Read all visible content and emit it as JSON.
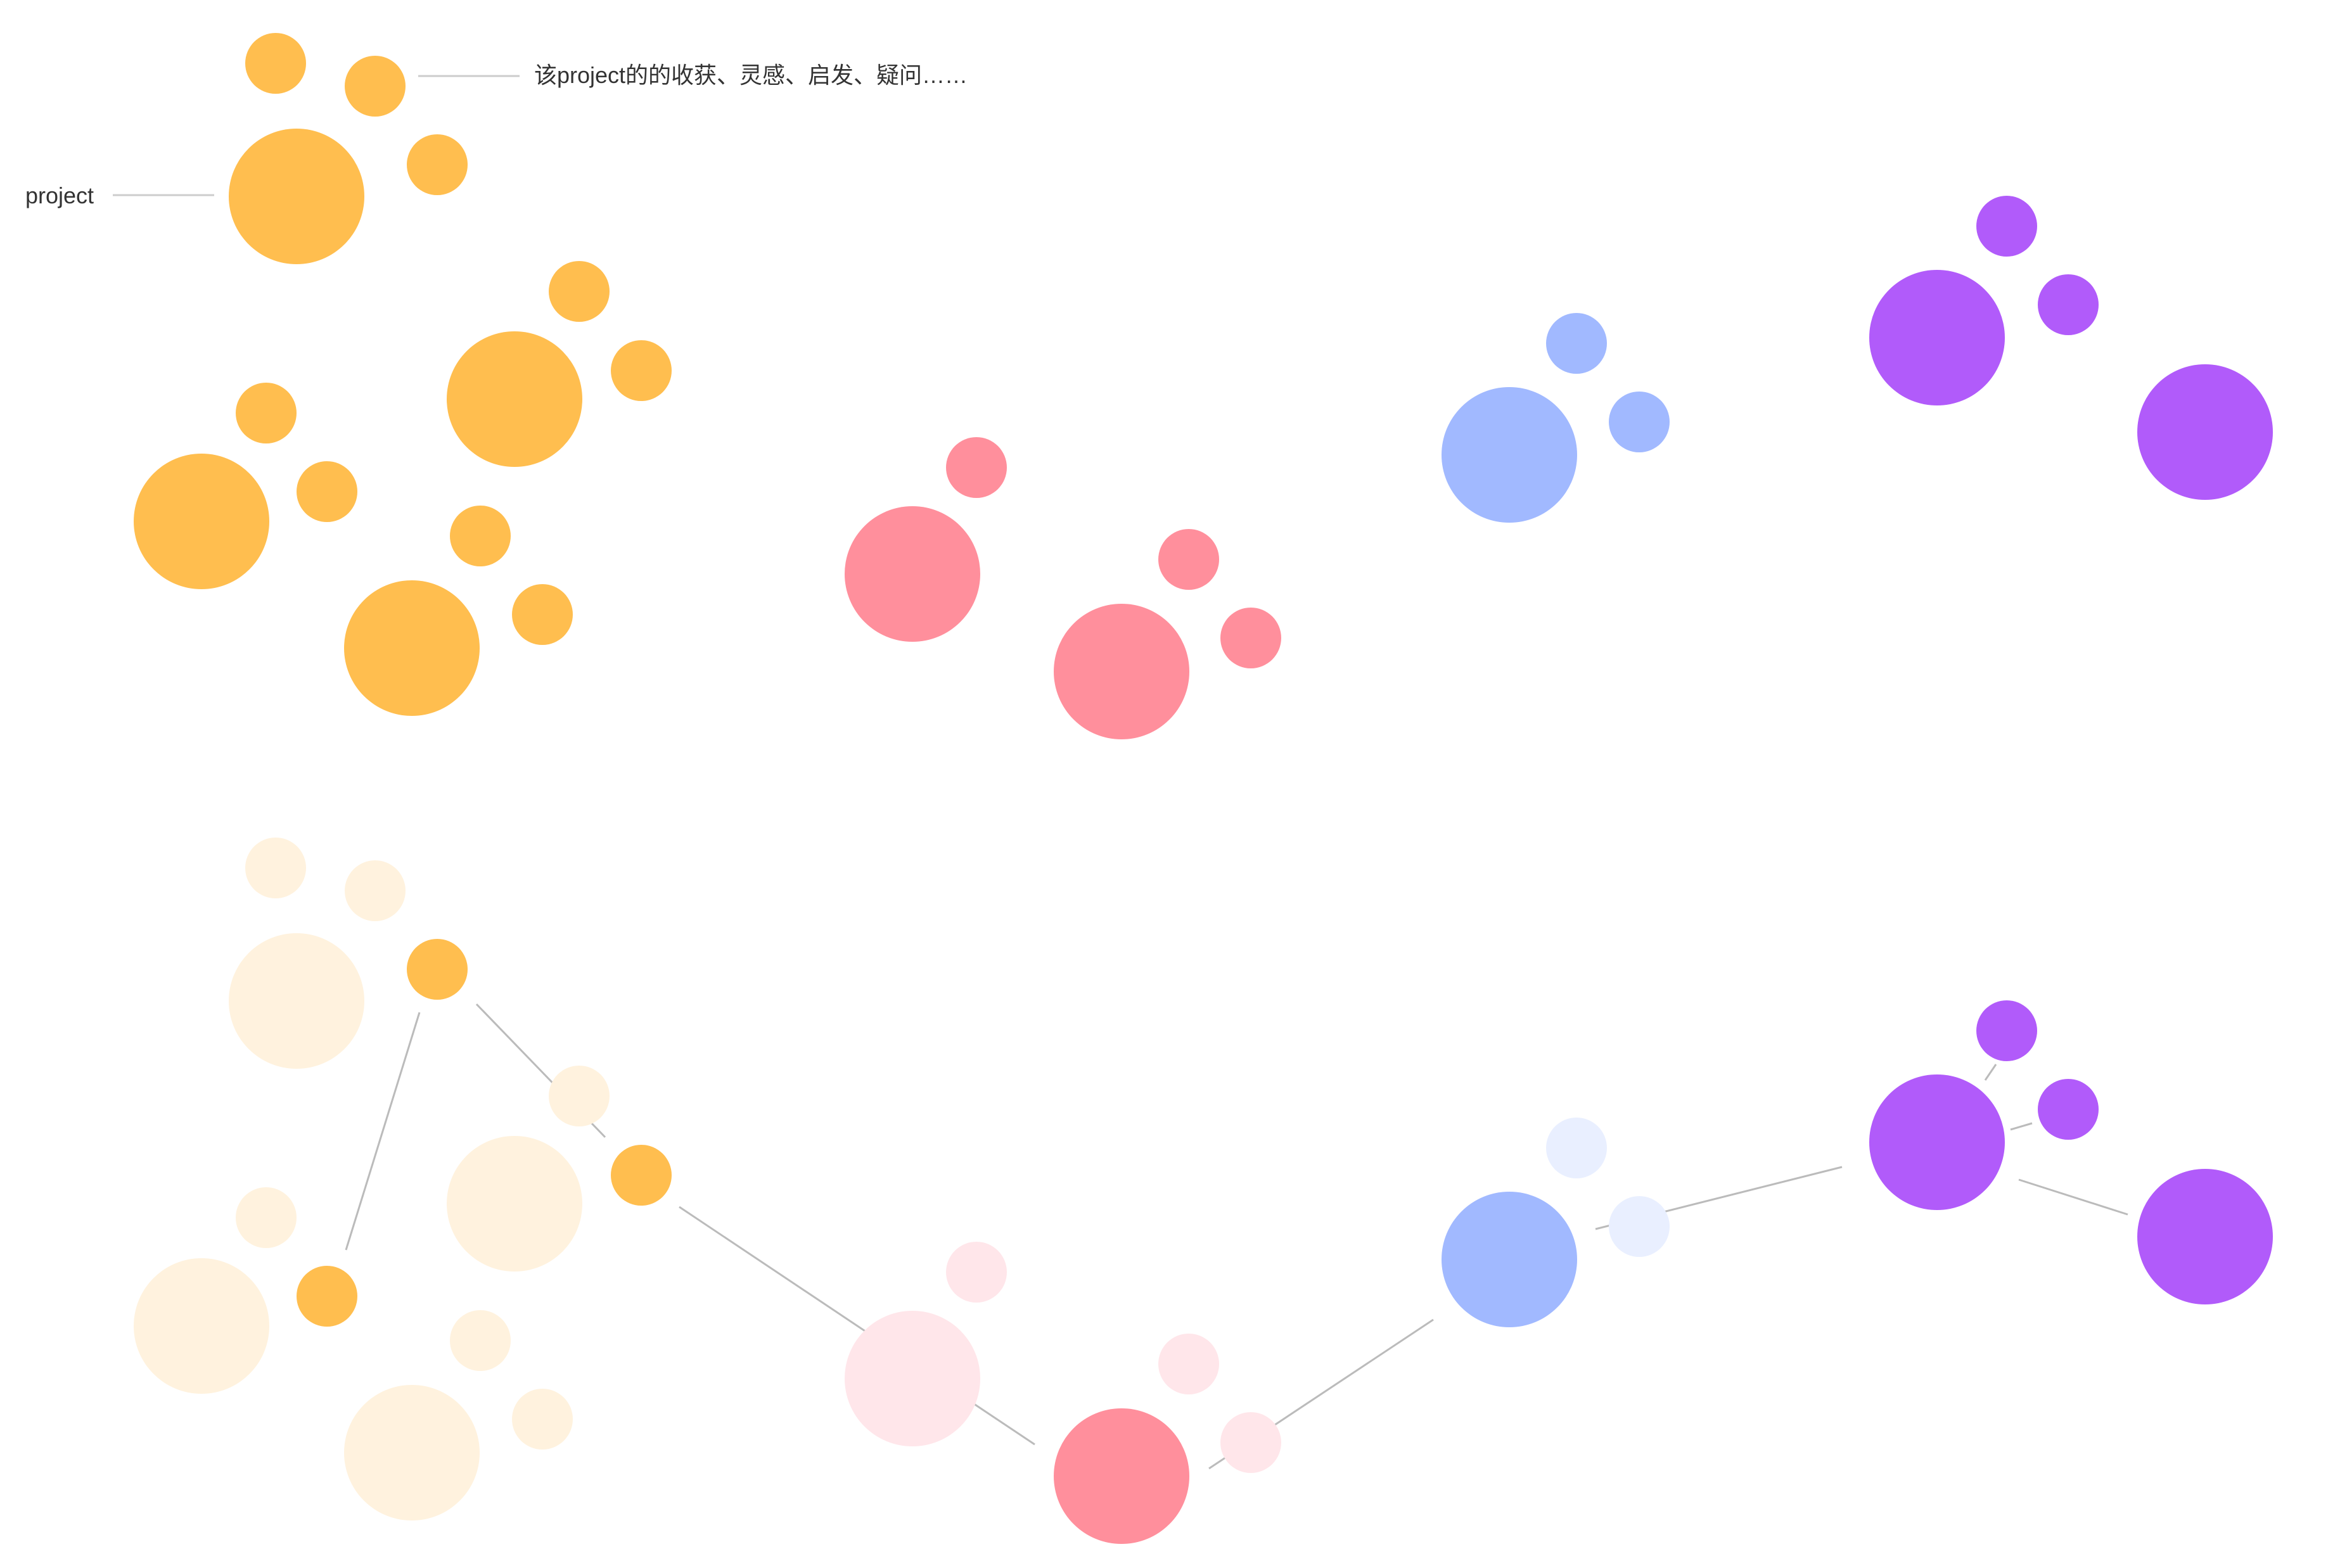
{
  "labels": {
    "project": "project",
    "insight": "该project的的收获、灵感、启发、疑问……"
  },
  "colors": {
    "orange": "#FFBE4F",
    "orange_faded": "#FFF2DE",
    "pink": "#FF8F9C",
    "pink_faded": "#FFE6EA",
    "blue": "#A1B9FF",
    "blue_faded": "#E9EFFF",
    "purple": "#B15BFA",
    "line": "#BBBBBB",
    "leader": "#CCCCCC"
  }
}
